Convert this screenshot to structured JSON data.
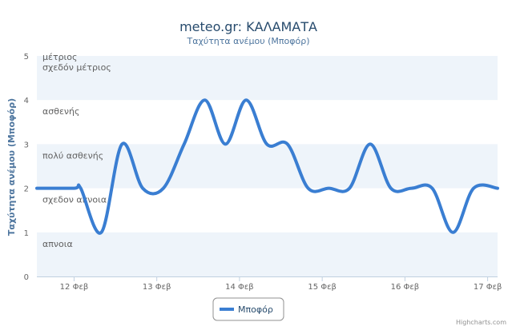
{
  "chart_data": {
    "type": "line",
    "title": "meteo.gr: ΚΑΛΑΜΑΤΑ",
    "subtitle": "Ταχύτητα ανέμου (Μποφόρ)",
    "ylabel": "Ταχύτητα ανέμου (Μποφόρ)",
    "ylim": [
      0,
      5
    ],
    "yticks": [
      "0",
      "1",
      "2",
      "3",
      "4",
      "5"
    ],
    "xlim": [
      11.55,
      17.12
    ],
    "xticks": [
      {
        "x": 12,
        "label": "12 Φεβ"
      },
      {
        "x": 13,
        "label": "13 Φεβ"
      },
      {
        "x": 14,
        "label": "14 Φεβ"
      },
      {
        "x": 15,
        "label": "15 Φεβ"
      },
      {
        "x": 16,
        "label": "16 Φεβ"
      },
      {
        "x": 17,
        "label": "17 Φεβ"
      }
    ],
    "bands": [
      {
        "from": 0,
        "to": 1,
        "label": "απνοια",
        "shaded": true
      },
      {
        "from": 1,
        "to": 2,
        "label": "σχεδον απνοια",
        "shaded": false
      },
      {
        "from": 2,
        "to": 3,
        "label": "πολύ ασθενής",
        "shaded": true
      },
      {
        "from": 3,
        "to": 4,
        "label": "ασθενής",
        "shaded": false
      },
      {
        "from": 4,
        "to": 5,
        "label": "σχεδόν μέτριος",
        "shaded": true
      },
      {
        "from": 5,
        "to": 5.05,
        "label": "μέτριος",
        "shaded": false
      }
    ],
    "series": [
      {
        "name": "Μποφόρ",
        "color": "#3a7ed2",
        "points": [
          [
            11.55,
            2
          ],
          [
            12.0,
            2
          ],
          [
            12.08,
            2
          ],
          [
            12.33,
            1
          ],
          [
            12.58,
            3
          ],
          [
            12.83,
            2
          ],
          [
            13.08,
            2
          ],
          [
            13.33,
            3
          ],
          [
            13.58,
            4
          ],
          [
            13.83,
            3
          ],
          [
            14.08,
            4
          ],
          [
            14.33,
            3
          ],
          [
            14.58,
            3
          ],
          [
            14.83,
            2
          ],
          [
            15.08,
            2
          ],
          [
            15.33,
            2
          ],
          [
            15.58,
            3
          ],
          [
            15.83,
            2
          ],
          [
            16.08,
            2
          ],
          [
            16.33,
            2
          ],
          [
            16.58,
            1
          ],
          [
            16.83,
            2
          ],
          [
            17.12,
            2
          ]
        ]
      }
    ],
    "legend": "bottom-center",
    "credit": "Highcharts.com"
  }
}
